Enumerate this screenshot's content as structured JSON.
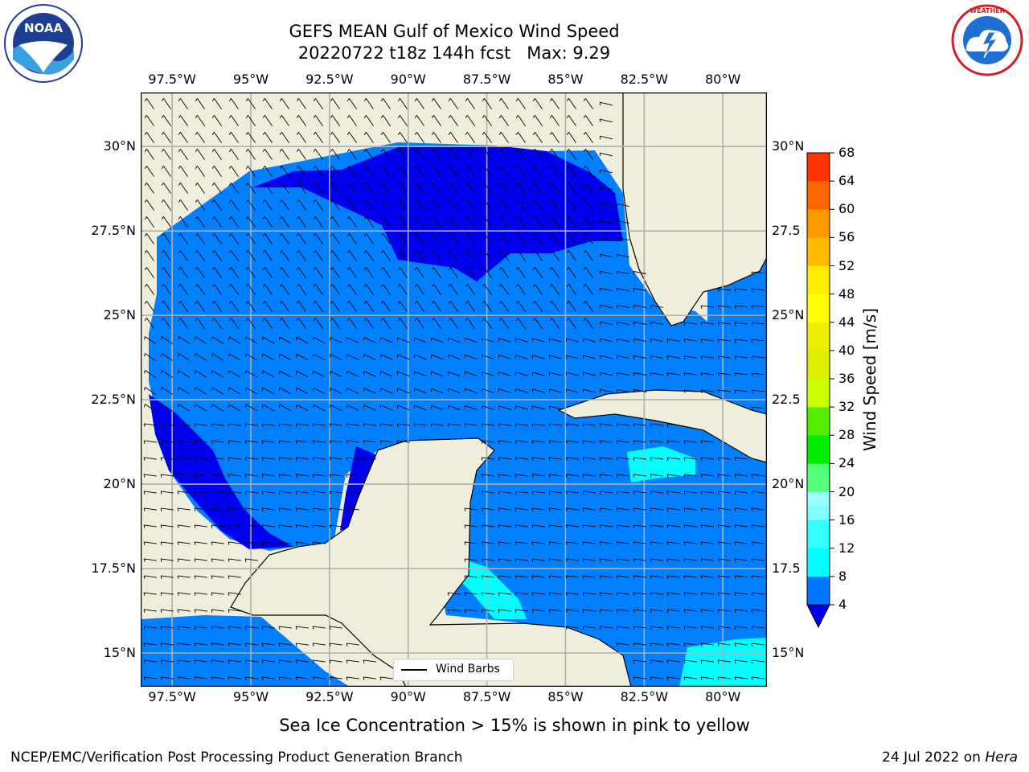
{
  "header": {
    "title_line1": "GEFS MEAN Gulf of Mexico Wind Speed",
    "title_line2": "20220722 t18z 144h fcst   Max: 9.29"
  },
  "map": {
    "projection": "Cylindrical",
    "extent": {
      "lon_min": -98.5,
      "lon_max": -78.6,
      "lat_min": 14.0,
      "lat_max": 31.6
    },
    "lon_gridlines": [
      -97.5,
      -95,
      -92.5,
      -90,
      -87.5,
      -85,
      -82.5,
      -80
    ],
    "lat_gridlines": [
      15,
      17.5,
      20,
      22.5,
      25,
      27.5,
      30
    ],
    "lon_labels": [
      "97.5°W",
      "95°W",
      "92.5°W",
      "90°W",
      "87.5°W",
      "85°W",
      "82.5°W",
      "80°W"
    ],
    "lat_labels": [
      "15°N",
      "17.5°N",
      "20°N",
      "22.5°N",
      "25°N",
      "27.5°N",
      "30°N"
    ],
    "lat_labels_right": [
      "15°N",
      "17.5",
      "20°N",
      "22.5",
      "25°N",
      "27.5",
      "30°N"
    ],
    "land_color": "#efeedc",
    "grid_color": "#b0b0b0",
    "legend": {
      "label": "Wind Barbs"
    }
  },
  "colorbar": {
    "label": "Wind Speed [m/s]",
    "ticks": [
      "4",
      "8",
      "12",
      "16",
      "20",
      "24",
      "28",
      "32",
      "36",
      "40",
      "44",
      "48",
      "52",
      "56",
      "60",
      "64",
      "68"
    ],
    "levels": [
      4,
      6,
      8,
      10,
      12,
      14,
      16,
      18,
      20,
      22,
      24,
      26,
      28,
      30,
      32,
      34,
      36,
      38,
      40,
      42,
      44,
      46,
      48,
      50,
      52,
      54,
      56,
      58,
      60,
      62,
      64,
      66,
      68
    ],
    "colors": [
      "#0077ff",
      "#0077ff",
      "#00ffff",
      "#00ffff",
      "#33ffff",
      "#33ffff",
      "#80ffff",
      "#99ffff",
      "#55ff77",
      "#55ff77",
      "#00ee00",
      "#00ee00",
      "#55ee00",
      "#55ee00",
      "#ccff00",
      "#ccff00",
      "#ddee00",
      "#ddee00",
      "#eeee00",
      "#eeee00",
      "#ffff00",
      "#ffff00",
      "#ffee00",
      "#ffee00",
      "#ffbb00",
      "#ffbb00",
      "#ff9900",
      "#ff9900",
      "#ff6600",
      "#ff6600",
      "#ff3300",
      "#ff3300"
    ],
    "under_color": "#0000ee"
  },
  "wind": {
    "colors": {
      "under4": "#0000ee",
      "4to8": "#0080ff",
      "8to12": "#00ffff",
      "12to16": "#33ffff"
    }
  },
  "footer": {
    "caption": "Sea Ice Concentration > 15% is shown in pink to yellow",
    "credit_left": "NCEP/EMC/Verification Post Processing Product Generation Branch",
    "credit_right_date": "24 Jul 2022 on",
    "credit_right_host": "Hera"
  },
  "logos": {
    "left": {
      "name": "noaa-logo",
      "text": "NOAA"
    },
    "right": {
      "name": "nws-logo",
      "text": "NATIONAL WEATHER SERVICE"
    }
  }
}
